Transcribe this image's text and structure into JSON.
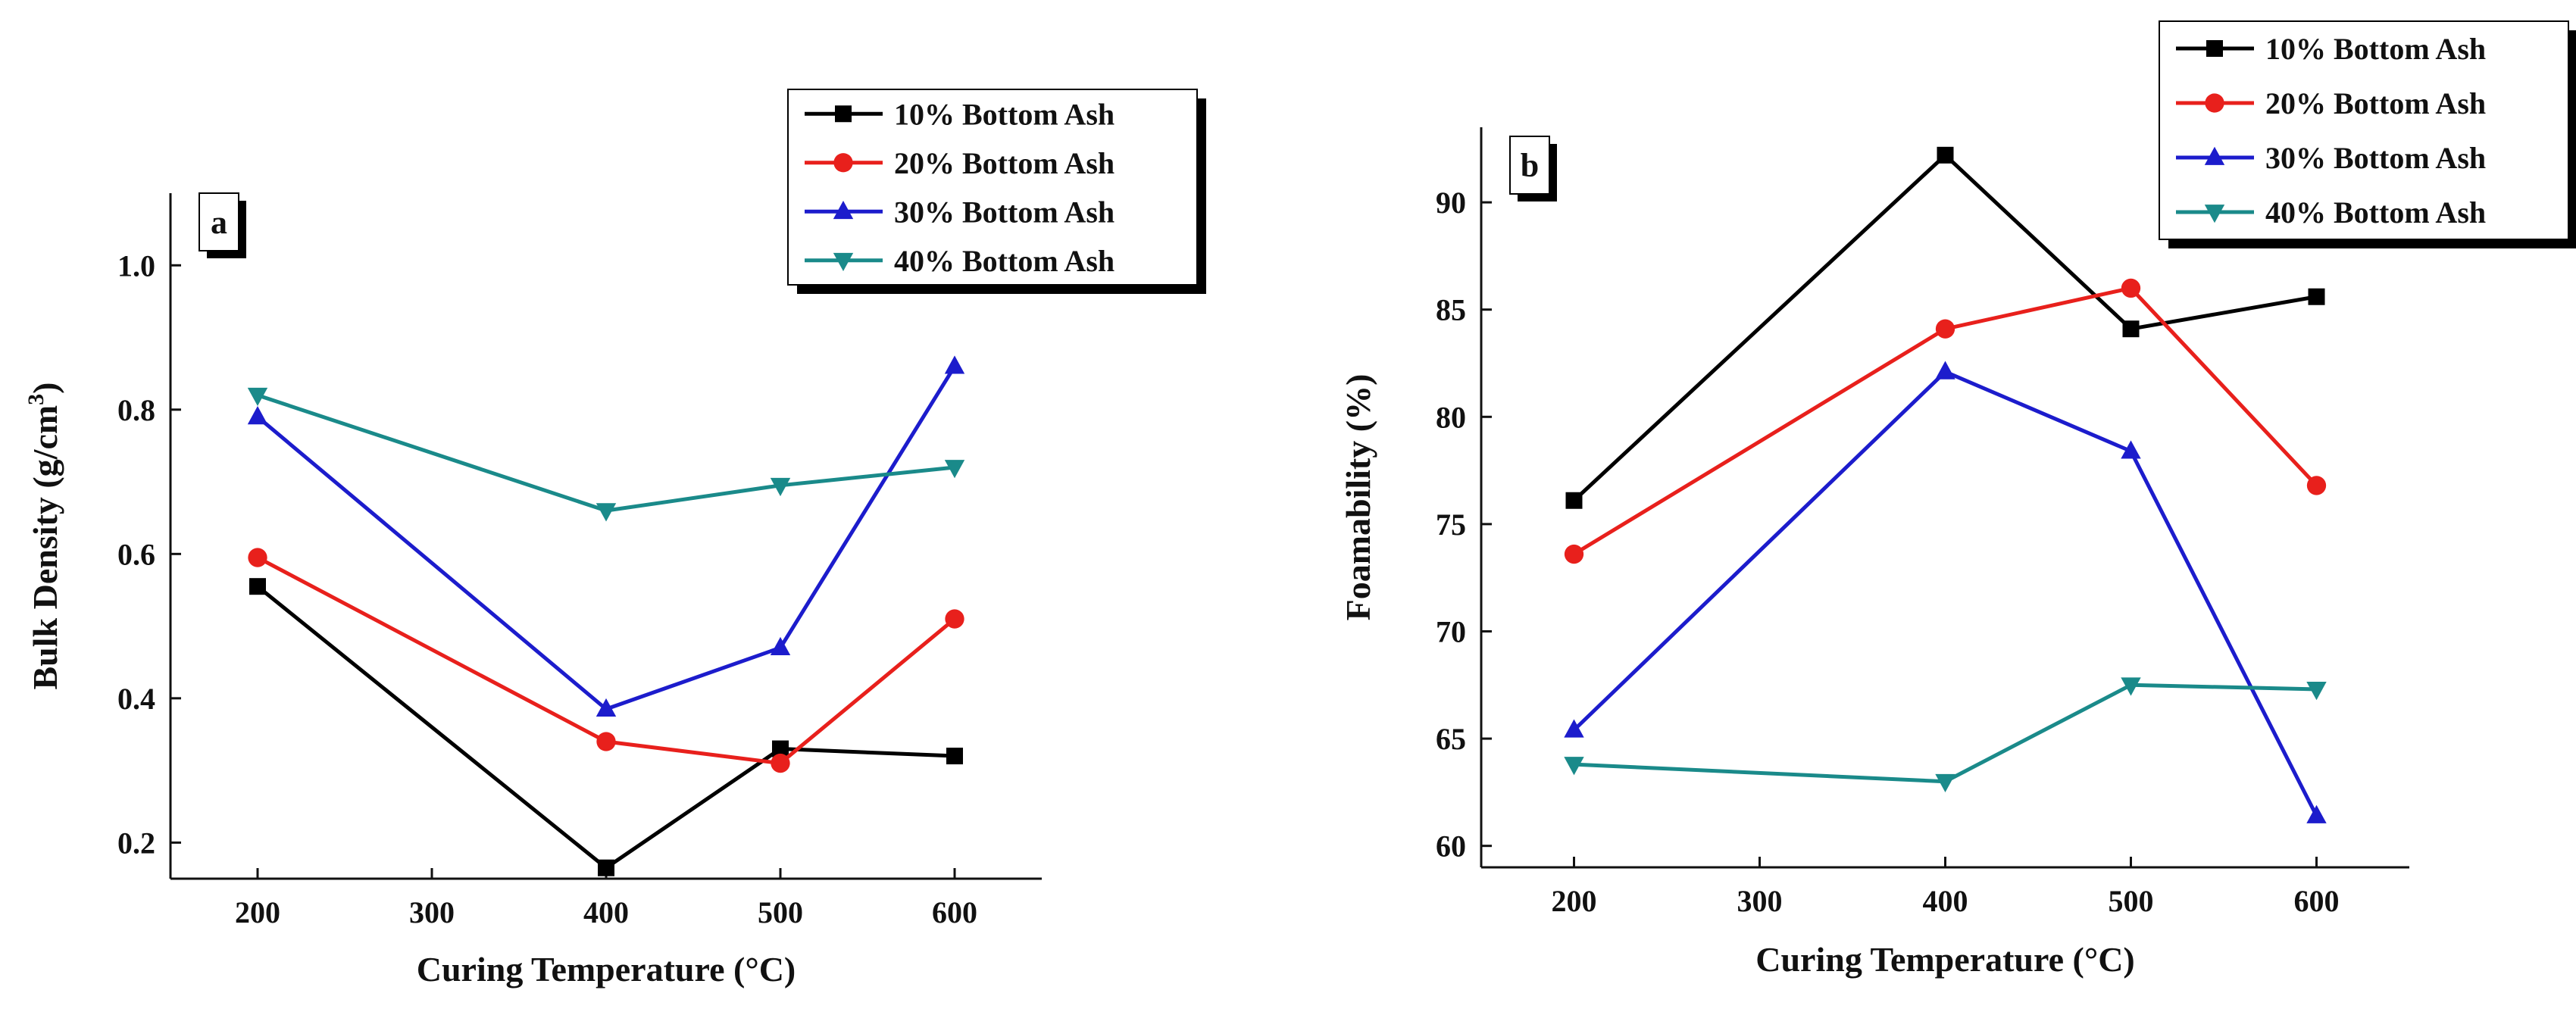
{
  "chart_data": [
    {
      "panel": "a",
      "type": "line",
      "title": "",
      "xlabel": "Curing Temperature (°C)",
      "ylabel": "Bulk Density (g/cm",
      "ylabel_sup": "3",
      "ylabel_close": ")",
      "xlim": [
        150,
        650
      ],
      "ylim": [
        0.15,
        1.1
      ],
      "xticks": [
        200,
        300,
        400,
        500,
        600
      ],
      "yticks": [
        0.2,
        0.4,
        0.6,
        0.8,
        1.0
      ],
      "xtick_labels": [
        "200",
        "300",
        "400",
        "500",
        "600"
      ],
      "ytick_labels": [
        "0.2",
        "0.4",
        "0.6",
        "0.8",
        "1.0"
      ],
      "legend_position": "top-right",
      "series": [
        {
          "name": "10% Bottom Ash",
          "color": "#000000",
          "marker": "square",
          "x": [
            200,
            400,
            500,
            600
          ],
          "values": [
            0.555,
            0.165,
            0.33,
            0.32
          ]
        },
        {
          "name": "20% Bottom Ash",
          "color": "#e8201c",
          "marker": "circle",
          "x": [
            200,
            400,
            500,
            600
          ],
          "values": [
            0.595,
            0.34,
            0.31,
            0.51
          ]
        },
        {
          "name": "30% Bottom Ash",
          "color": "#1c1ccc",
          "marker": "triangle-up",
          "x": [
            200,
            400,
            500,
            600
          ],
          "values": [
            0.79,
            0.385,
            0.47,
            0.86
          ]
        },
        {
          "name": "40% Bottom Ash",
          "color": "#1a8a8a",
          "marker": "triangle-down",
          "x": [
            200,
            400,
            500,
            600
          ],
          "values": [
            0.82,
            0.66,
            0.695,
            0.72
          ]
        }
      ]
    },
    {
      "panel": "b",
      "type": "line",
      "title": "",
      "xlabel": "Curing Temperature (°C)",
      "ylabel": "Foamability (%)",
      "ylabel_sup": "",
      "ylabel_close": "",
      "xlim": [
        150,
        650
      ],
      "ylim": [
        59,
        93.5
      ],
      "xticks": [
        200,
        300,
        400,
        500,
        600
      ],
      "yticks": [
        60,
        65,
        70,
        75,
        80,
        85,
        90
      ],
      "xtick_labels": [
        "200",
        "300",
        "400",
        "500",
        "600"
      ],
      "ytick_labels": [
        "60",
        "65",
        "70",
        "75",
        "80",
        "85",
        "90"
      ],
      "legend_position": "top-right",
      "series": [
        {
          "name": "10% Bottom Ash",
          "color": "#000000",
          "marker": "square",
          "x": [
            200,
            400,
            500,
            600
          ],
          "values": [
            76.1,
            92.2,
            84.1,
            85.6
          ]
        },
        {
          "name": "20% Bottom Ash",
          "color": "#e8201c",
          "marker": "circle",
          "x": [
            200,
            400,
            500,
            600
          ],
          "values": [
            73.6,
            84.1,
            86.0,
            76.8
          ]
        },
        {
          "name": "30% Bottom Ash",
          "color": "#1c1ccc",
          "marker": "triangle-up",
          "x": [
            200,
            400,
            500,
            600
          ],
          "values": [
            65.4,
            82.1,
            78.4,
            61.4
          ]
        },
        {
          "name": "40% Bottom Ash",
          "color": "#1a8a8a",
          "marker": "triangle-down",
          "x": [
            200,
            400,
            500,
            600
          ],
          "values": [
            63.8,
            63.0,
            67.5,
            67.3
          ]
        }
      ]
    }
  ]
}
